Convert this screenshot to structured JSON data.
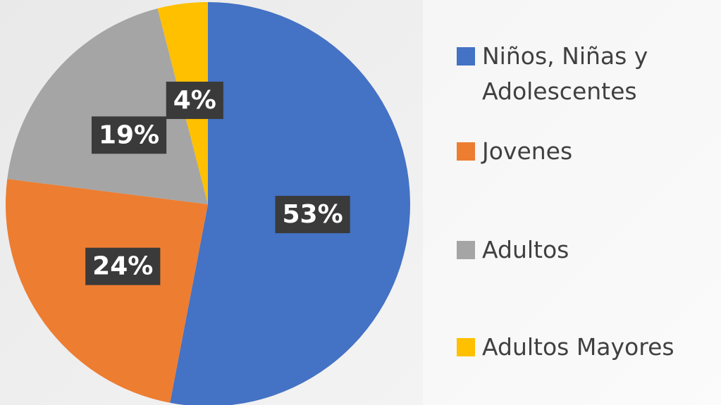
{
  "chart_data": {
    "type": "pie",
    "categories": [
      "Niños, Niñas y Adolescentes",
      "Jovenes",
      "Adultos",
      "Adultos Mayores"
    ],
    "values": [
      53,
      24,
      19,
      4
    ],
    "value_labels": [
      "53%",
      "24%",
      "19%",
      "4%"
    ],
    "colors": [
      "#4472c4",
      "#ed7d31",
      "#a5a5a5",
      "#ffc000"
    ],
    "legend": "right"
  }
}
